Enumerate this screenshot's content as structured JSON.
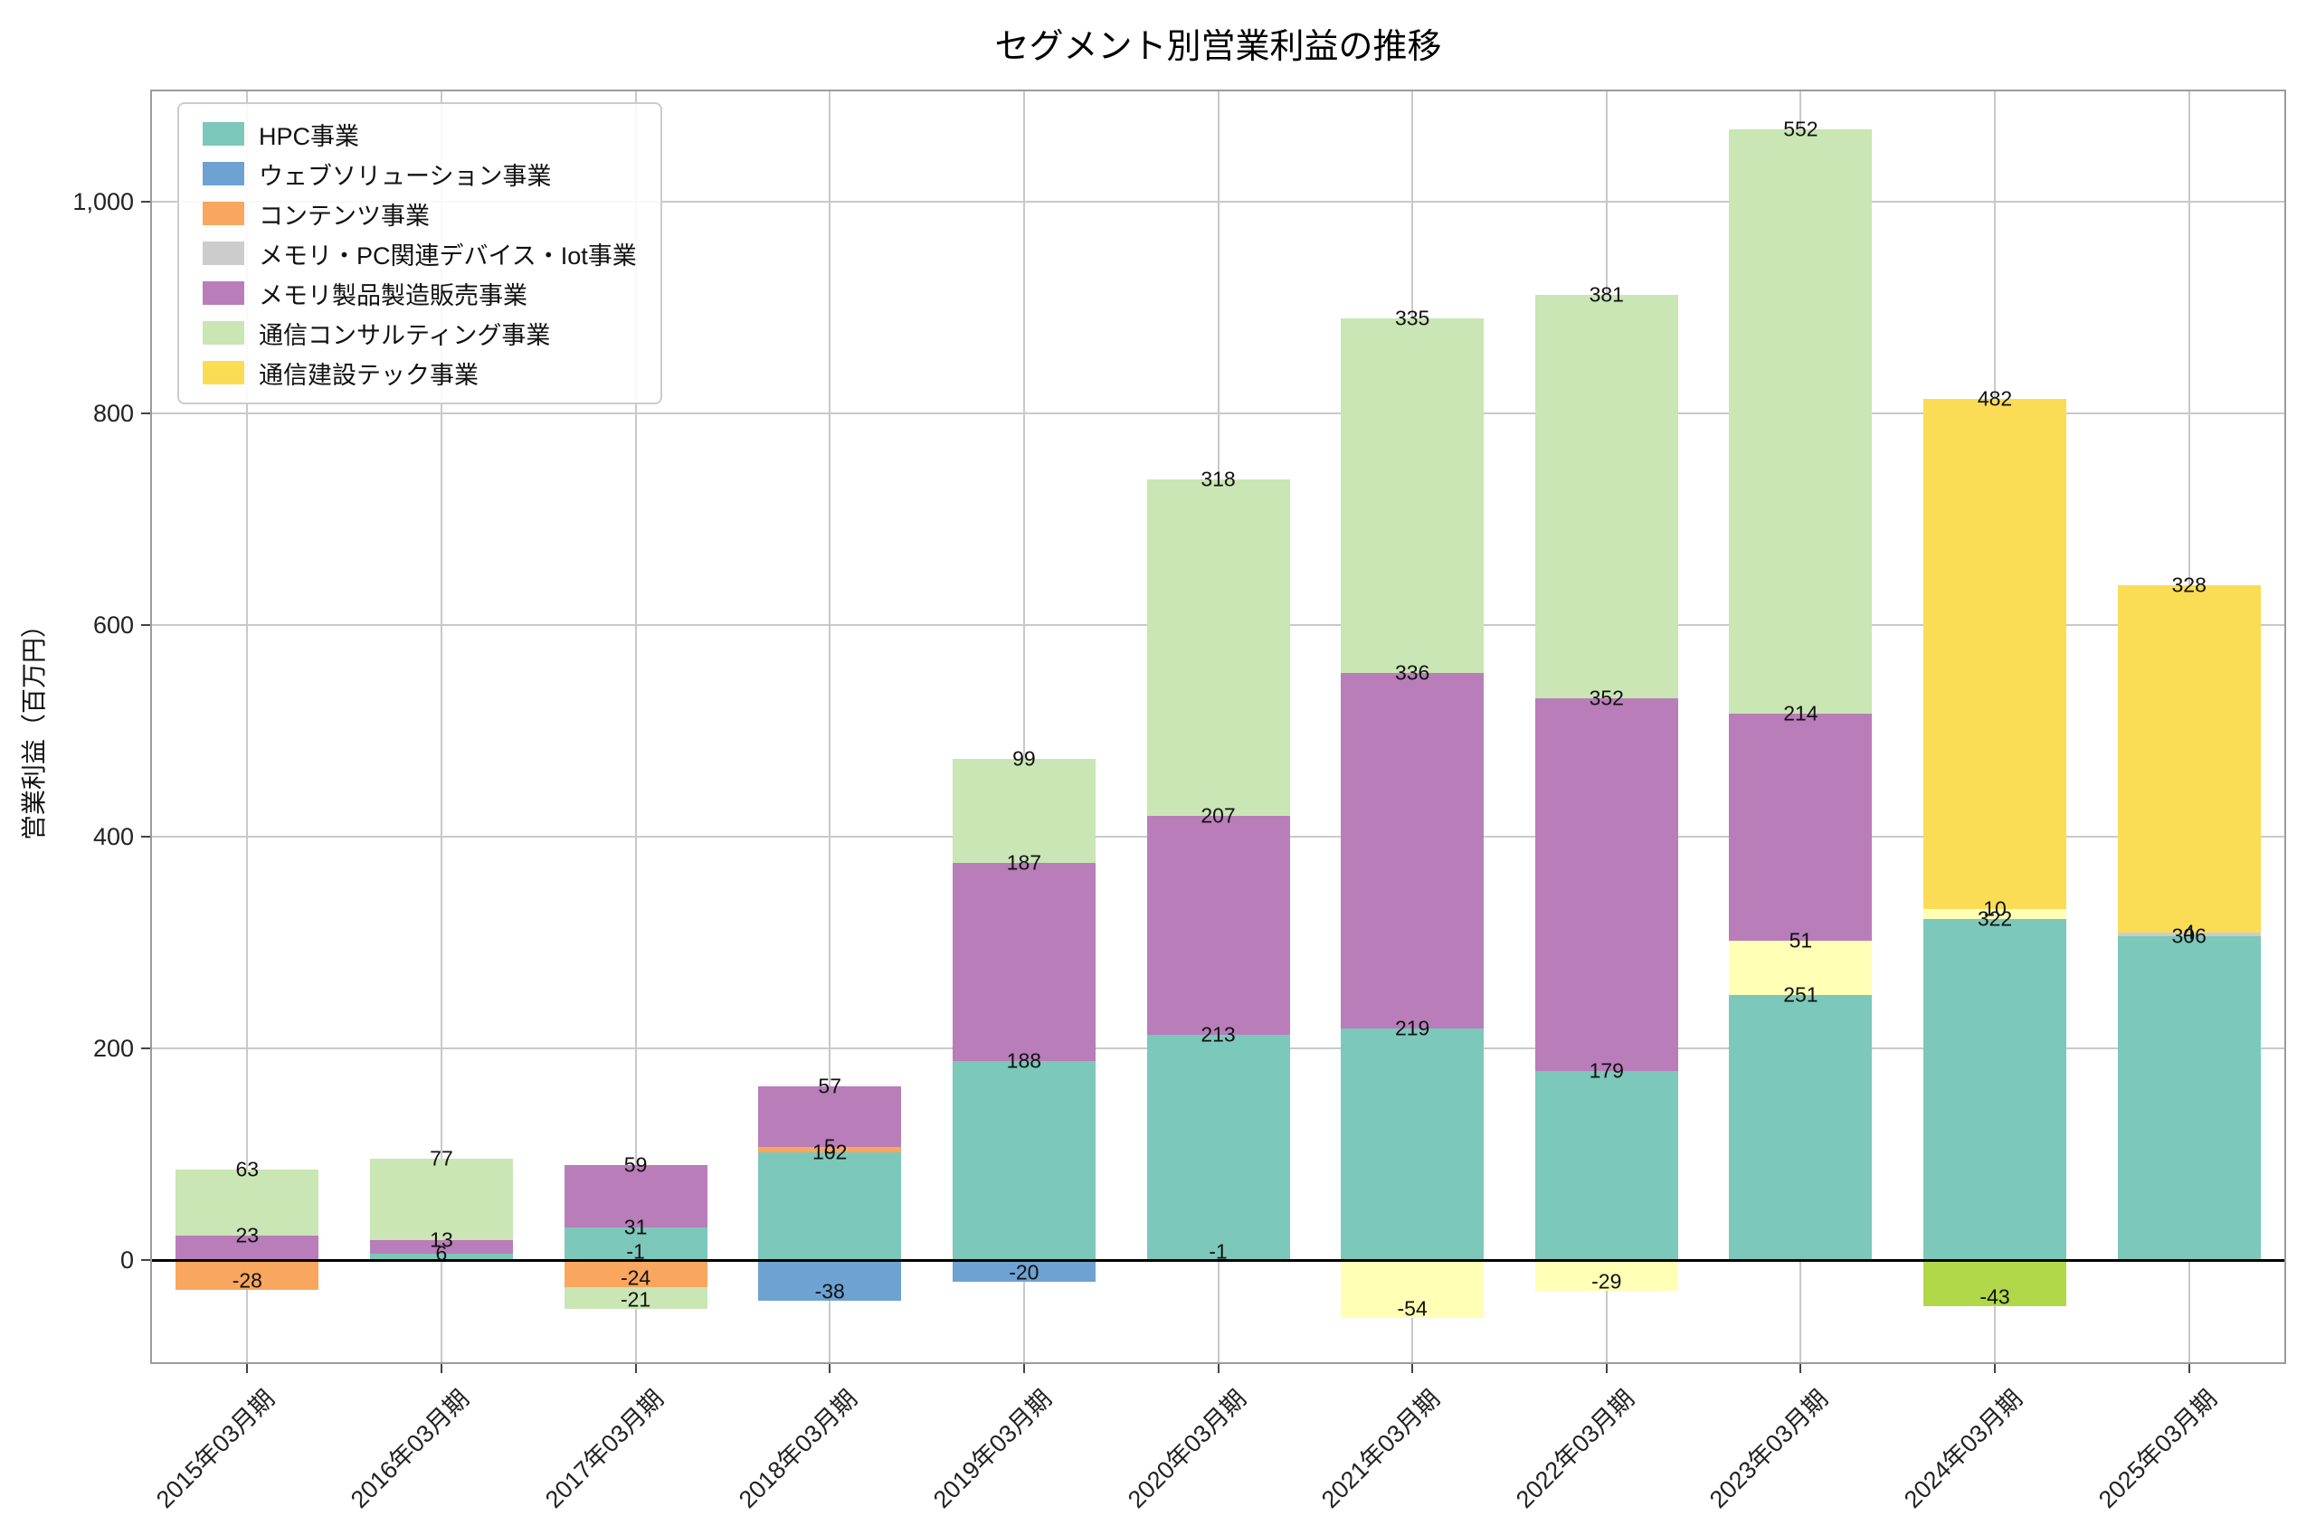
{
  "title": "セグメント別営業利益の推移",
  "y_axis": {
    "label": "営業利益（百万円）"
  },
  "legend": {
    "items": [
      {
        "label": "HPC事業",
        "color": "#7cc8ba"
      },
      {
        "label": "ウェブソリューション事業",
        "color": "#6da2d2"
      },
      {
        "label": "コンテンツ事業",
        "color": "#f9a75e"
      },
      {
        "label": "メモリ・PC関連デバイス・Iot事業",
        "color": "#cccccc"
      },
      {
        "label": "メモリ製品製造販売事業",
        "color": "#b97dba"
      },
      {
        "label": "通信コンサルティング事業",
        "color": "#c9e6b4"
      },
      {
        "label": "通信建設テック事業",
        "color": "#fadd55"
      }
    ]
  },
  "chart_data": {
    "type": "bar",
    "stacked": true,
    "title": "セグメント別営業利益の推移",
    "xlabel": "",
    "ylabel": "営業利益（百万円）",
    "ylim": [
      -98,
      1106
    ],
    "grid": true,
    "legend_position": "upper left",
    "y_tick_values": [
      0,
      200,
      400,
      600,
      800,
      1000
    ],
    "y_tick_labels": [
      "0",
      "200",
      "400",
      "600",
      "800",
      "1,000"
    ],
    "categories": [
      "2015年03月期",
      "2016年03月期",
      "2017年03月期",
      "2018年03月期",
      "2019年03月期",
      "2020年03月期",
      "2021年03月期",
      "2022年03月期",
      "2023年03月期",
      "2024年03月期",
      "2025年03月期"
    ],
    "series": [
      {
        "name": "HPC事業",
        "color": "#7cc8ba",
        "values": [
          0,
          6,
          31,
          102,
          188,
          213,
          219,
          179,
          251,
          322,
          306
        ]
      },
      {
        "name": "ウェブソリューション事業",
        "color": "#6da2d2",
        "values": [
          0,
          0,
          0,
          -38,
          -20,
          -1,
          0,
          0,
          0,
          0,
          0
        ]
      },
      {
        "name": "メモリ・PC関連デバイス・Iot事業",
        "color": "#cccccc",
        "values": [
          0,
          0,
          -1,
          0,
          0,
          0,
          0,
          0,
          0,
          0,
          4
        ]
      },
      {
        "name": "コンテンツ事業",
        "color": "#f9a75e",
        "values": [
          -28,
          0,
          -24,
          5,
          0,
          0,
          0,
          0,
          0,
          0,
          0
        ]
      },
      {
        "name": "",
        "color": "#ffffb5",
        "values": [
          0,
          0,
          0,
          0,
          0,
          0,
          -54,
          -29,
          51,
          10,
          0
        ]
      },
      {
        "name": "メモリ製品製造販売事業",
        "color": "#b97dba",
        "values": [
          23,
          13,
          59,
          57,
          187,
          207,
          336,
          352,
          214,
          0,
          0
        ]
      },
      {
        "name": "通信コンサルティング事業",
        "color": "#c9e6b4",
        "values": [
          63,
          77,
          -21,
          0,
          99,
          318,
          335,
          381,
          552,
          0,
          0
        ]
      },
      {
        "name": "通信建設テック事業",
        "color": "#fadd55",
        "values": [
          0,
          0,
          0,
          0,
          0,
          0,
          0,
          0,
          0,
          482,
          328
        ]
      },
      {
        "name": "",
        "color": "#b0d848",
        "values": [
          0,
          0,
          0,
          0,
          0,
          0,
          0,
          0,
          0,
          -43,
          0
        ]
      }
    ]
  }
}
